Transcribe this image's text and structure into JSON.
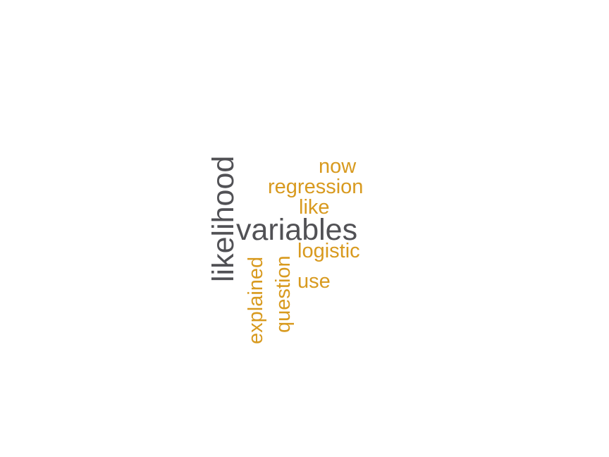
{
  "colors": {
    "primary": "#515155",
    "secondary": "#d89a1f",
    "background": "#ffffff"
  },
  "words": {
    "likelihood": "likelihood",
    "variables": "variables",
    "now": "now",
    "regression": "regression",
    "like": "like",
    "logistic": "logistic",
    "use": "use",
    "explained": "explained",
    "question": "question"
  }
}
